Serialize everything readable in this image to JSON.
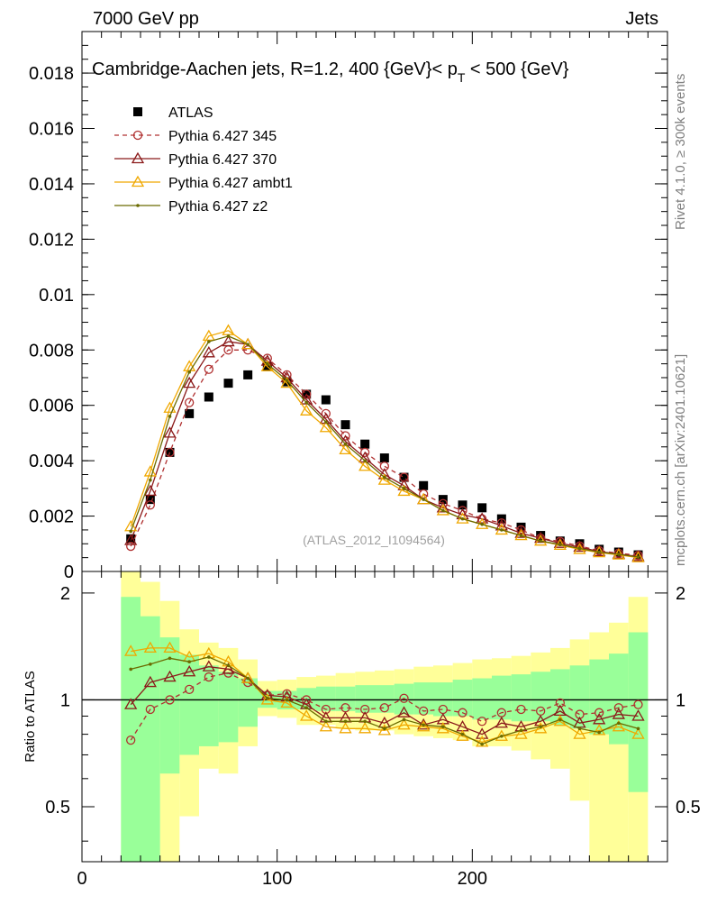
{
  "header": {
    "left": "7000 GeV pp",
    "right": "Jets"
  },
  "side_labels": {
    "rivet": "Rivet 4.1.0, ≥ 300k events",
    "mcplots": "mcplots.cern.ch [arXiv:2401.10621]"
  },
  "colors": {
    "atlas": "#000000",
    "p345": "#b03030",
    "p370": "#8b1a1a",
    "ambt1": "#f0a800",
    "z2": "#6b6b00",
    "band_inner": "#99ff99",
    "band_outer": "#ffff99"
  },
  "chart_data": {
    "type": "line",
    "title": "Cambridge-Aachen jets, R=1.2, 400 {GeV}< p_T < 500 {GeV}",
    "title_parts": {
      "main": "Cambridge-Aachen jets, R=1.2, 400 {GeV}< p",
      "sub": "T",
      "tail": " < 500 {GeV}"
    },
    "watermark": "(ATLAS_2012_I1094564)",
    "xlim": [
      0,
      300
    ],
    "xticks": [
      0,
      100,
      200
    ],
    "ylim": [
      0,
      0.0195
    ],
    "yticks": [
      0,
      0.002,
      0.004,
      0.006,
      0.008,
      0.01,
      0.012,
      0.014,
      0.016,
      0.018
    ],
    "ytick_labels": [
      "0",
      "0.002",
      "0.004",
      "0.006",
      "0.008",
      "0.01",
      "0.012",
      "0.014",
      "0.016",
      "0.018"
    ],
    "ratio_ylabel": "Ratio to ATLAS",
    "ratio_ylim": [
      0.35,
      2.3
    ],
    "ratio_yticks": [
      0.5,
      1,
      2
    ],
    "ratio_ytick_labels": [
      "0.5",
      "1",
      "2"
    ],
    "x": [
      25,
      35,
      45,
      55,
      65,
      75,
      85,
      95,
      105,
      115,
      125,
      135,
      145,
      155,
      165,
      175,
      185,
      195,
      205,
      215,
      225,
      235,
      245,
      255,
      265,
      275,
      285
    ],
    "bin_edges": [
      20,
      30,
      40,
      50,
      60,
      70,
      80,
      90,
      100,
      110,
      120,
      130,
      140,
      150,
      160,
      170,
      180,
      190,
      200,
      210,
      220,
      230,
      240,
      250,
      260,
      270,
      280,
      290
    ],
    "series": [
      {
        "name": "ATLAS",
        "style": "data",
        "values": [
          0.00118,
          0.0026,
          0.0043,
          0.0057,
          0.0063,
          0.0068,
          0.0071,
          0.0074,
          0.00685,
          0.0064,
          0.0062,
          0.0053,
          0.0046,
          0.0041,
          0.0034,
          0.0031,
          0.0026,
          0.0024,
          0.0023,
          0.0019,
          0.0016,
          0.0013,
          0.0011,
          0.001,
          0.0008,
          0.0007,
          0.0006
        ]
      },
      {
        "name": "Pythia 6.427 345",
        "style": "p345",
        "values": [
          0.00091,
          0.0024,
          0.0043,
          0.0061,
          0.0073,
          0.008,
          0.008,
          0.0077,
          0.0071,
          0.0064,
          0.0057,
          0.0049,
          0.0043,
          0.0038,
          0.0034,
          0.0028,
          0.00245,
          0.0022,
          0.0019,
          0.00175,
          0.0015,
          0.0012,
          0.00108,
          0.00092,
          0.00075,
          0.00066,
          0.00058
        ]
      },
      {
        "name": "Pythia 6.427 370",
        "style": "p370",
        "values": [
          0.00112,
          0.0029,
          0.005,
          0.0068,
          0.0079,
          0.0083,
          0.0082,
          0.0076,
          0.007,
          0.0062,
          0.0055,
          0.0047,
          0.0041,
          0.0035,
          0.0031,
          0.0026,
          0.0023,
          0.00205,
          0.0019,
          0.00165,
          0.00138,
          0.0012,
          0.00102,
          0.00088,
          0.00072,
          0.00063,
          0.00054
        ]
      },
      {
        "name": "Pythia 6.427 ambt1",
        "style": "ambt1",
        "values": [
          0.00162,
          0.0036,
          0.0059,
          0.0074,
          0.0085,
          0.0087,
          0.0082,
          0.0074,
          0.0068,
          0.0058,
          0.0052,
          0.0044,
          0.0038,
          0.0033,
          0.0029,
          0.0026,
          0.0022,
          0.0019,
          0.0017,
          0.0015,
          0.0013,
          0.0011,
          0.00095,
          0.0008,
          0.00068,
          0.0006,
          0.0005
        ]
      },
      {
        "name": "Pythia 6.427 z2",
        "style": "z2",
        "values": [
          0.00145,
          0.0033,
          0.0056,
          0.0072,
          0.0083,
          0.0085,
          0.0082,
          0.0075,
          0.0069,
          0.0061,
          0.0054,
          0.0046,
          0.004,
          0.0034,
          0.003,
          0.0026,
          0.0022,
          0.0019,
          0.0017,
          0.0015,
          0.0013,
          0.0011,
          0.00097,
          0.00083,
          0.0007,
          0.00062,
          0.00052
        ]
      }
    ],
    "ratio_series": [
      {
        "name": "Pythia 6.427 345",
        "style": "p345",
        "values": [
          0.77,
          0.94,
          1.0,
          1.07,
          1.16,
          1.19,
          1.12,
          1.03,
          1.04,
          1.0,
          0.94,
          0.95,
          0.94,
          0.95,
          1.01,
          0.93,
          0.94,
          0.92,
          0.87,
          0.92,
          0.94,
          0.93,
          0.98,
          0.91,
          0.92,
          0.95,
          0.97
        ]
      },
      {
        "name": "Pythia 6.427 370",
        "style": "p370",
        "values": [
          0.97,
          1.12,
          1.16,
          1.2,
          1.24,
          1.22,
          1.15,
          1.03,
          1.02,
          0.97,
          0.89,
          0.89,
          0.89,
          0.86,
          0.92,
          0.85,
          0.88,
          0.84,
          0.8,
          0.86,
          0.84,
          0.87,
          0.93,
          0.86,
          0.88,
          0.91,
          0.9
        ]
      },
      {
        "name": "Pythia 6.427 ambt1",
        "style": "ambt1",
        "values": [
          1.37,
          1.4,
          1.4,
          1.32,
          1.35,
          1.28,
          1.15,
          1.0,
          0.98,
          0.9,
          0.84,
          0.83,
          0.83,
          0.82,
          0.85,
          0.84,
          0.83,
          0.79,
          0.76,
          0.79,
          0.8,
          0.83,
          0.87,
          0.8,
          0.82,
          0.84,
          0.8
        ]
      },
      {
        "name": "Pythia 6.427 z2",
        "style": "z2",
        "values": [
          1.22,
          1.26,
          1.31,
          1.28,
          1.32,
          1.25,
          1.15,
          1.01,
          1.0,
          0.95,
          0.87,
          0.87,
          0.87,
          0.83,
          0.88,
          0.85,
          0.84,
          0.8,
          0.75,
          0.79,
          0.82,
          0.84,
          0.88,
          0.83,
          0.81,
          0.86,
          0.83
        ]
      }
    ],
    "ratio_band_inner": [
      [
        0.35,
        1.95
      ],
      [
        0.35,
        1.72
      ],
      [
        0.62,
        1.5
      ],
      [
        0.7,
        1.34
      ],
      [
        0.74,
        1.25
      ],
      [
        0.76,
        1.2
      ],
      [
        0.84,
        1.15
      ],
      [
        0.95,
        1.06
      ],
      [
        0.94,
        1.06
      ],
      [
        0.94,
        1.08
      ],
      [
        0.93,
        1.09
      ],
      [
        0.93,
        1.09
      ],
      [
        0.92,
        1.1
      ],
      [
        0.92,
        1.1
      ],
      [
        0.91,
        1.11
      ],
      [
        0.91,
        1.12
      ],
      [
        0.9,
        1.12
      ],
      [
        0.9,
        1.14
      ],
      [
        0.88,
        1.15
      ],
      [
        0.88,
        1.17
      ],
      [
        0.87,
        1.18
      ],
      [
        0.87,
        1.2
      ],
      [
        0.85,
        1.22
      ],
      [
        0.83,
        1.25
      ],
      [
        0.8,
        1.3
      ],
      [
        0.75,
        1.35
      ],
      [
        0.55,
        1.55
      ]
    ],
    "ratio_band_outer": [
      [
        0.35,
        2.3
      ],
      [
        0.35,
        2.15
      ],
      [
        0.35,
        1.9
      ],
      [
        0.47,
        1.58
      ],
      [
        0.64,
        1.45
      ],
      [
        0.62,
        1.4
      ],
      [
        0.74,
        1.3
      ],
      [
        0.9,
        1.13
      ],
      [
        0.89,
        1.14
      ],
      [
        0.85,
        1.16
      ],
      [
        0.85,
        1.17
      ],
      [
        0.83,
        1.19
      ],
      [
        0.82,
        1.2
      ],
      [
        0.82,
        1.21
      ],
      [
        0.8,
        1.22
      ],
      [
        0.79,
        1.24
      ],
      [
        0.78,
        1.25
      ],
      [
        0.77,
        1.27
      ],
      [
        0.74,
        1.3
      ],
      [
        0.74,
        1.31
      ],
      [
        0.72,
        1.33
      ],
      [
        0.68,
        1.36
      ],
      [
        0.64,
        1.4
      ],
      [
        0.52,
        1.48
      ],
      [
        0.35,
        1.55
      ],
      [
        0.35,
        1.65
      ],
      [
        0.35,
        1.95
      ]
    ]
  }
}
